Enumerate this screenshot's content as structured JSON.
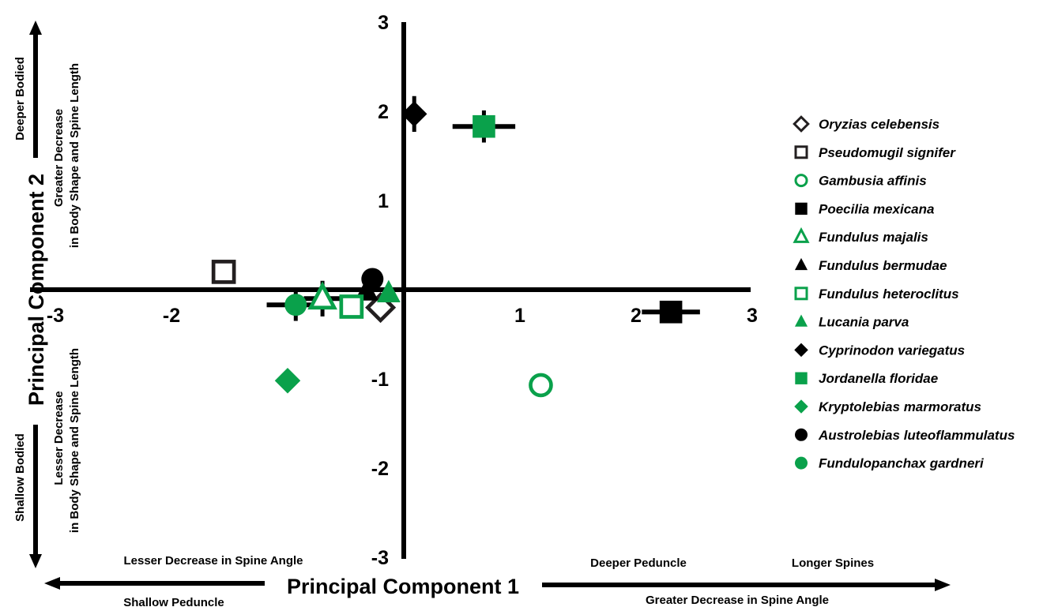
{
  "chart_data": {
    "type": "scatter",
    "xlabel": "Principal Component 1",
    "ylabel": "Principal Component 2",
    "xlim": [
      -3,
      3
    ],
    "ylim": [
      -3,
      3
    ],
    "x_ticks": [
      {
        "value": -3,
        "label": "-3"
      },
      {
        "value": -2,
        "label": "-2"
      },
      {
        "value": 1,
        "label": "1"
      },
      {
        "value": 2,
        "label": "2"
      },
      {
        "value": 3,
        "label": "3"
      }
    ],
    "y_ticks": [
      {
        "value": 3,
        "label": "3"
      },
      {
        "value": 2,
        "label": "2"
      },
      {
        "value": 1,
        "label": "1"
      },
      {
        "value": -1,
        "label": "-1"
      },
      {
        "value": -2,
        "label": "-2"
      },
      {
        "value": -3,
        "label": "-3"
      }
    ],
    "x_annotations": {
      "negative_top": "Lesser Decrease in Spine Angle",
      "negative_bottom": "Shallow Peduncle",
      "positive_top_1": "Deeper Peduncle",
      "positive_top_2": "Longer Spines",
      "positive_bottom": "Greater Decrease in Spine Angle"
    },
    "y_annotations": {
      "positive_outer": "Deeper Bodied",
      "positive_inner_1": "Greater Decrease",
      "positive_inner_2": "in Body Shape and  Spine Length",
      "negative_outer": "Shallow Bodied",
      "negative_inner_1": "Lesser Decrease",
      "negative_inner_2": "in Body Shape  and  Spine Length"
    },
    "legend_position": "right",
    "series": [
      {
        "name": "Oryzias celebensis",
        "marker": "diamond",
        "fill": "open",
        "color": "#231f20",
        "x": -0.2,
        "y": -0.2
      },
      {
        "name": "Pseudomugil signifer",
        "marker": "square",
        "fill": "open",
        "color": "#231f20",
        "x": -1.55,
        "y": 0.2
      },
      {
        "name": "Gambusia affinis",
        "marker": "circle",
        "fill": "open",
        "color": "#0aa14b",
        "x": 1.18,
        "y": -1.07
      },
      {
        "name": "Poecilia mexicana",
        "marker": "square",
        "fill": "filled",
        "color": "#000000",
        "x": 2.3,
        "y": -0.25,
        "xerr": 0.25,
        "yerr": 0.08
      },
      {
        "name": "Fundulus majalis",
        "marker": "triangle",
        "fill": "open",
        "color": "#0aa14b",
        "x": -0.7,
        "y": -0.1,
        "xerr": 0.16,
        "yerr": 0.2
      },
      {
        "name": "Fundulus bermudae",
        "marker": "triangle",
        "fill": "filled",
        "color": "#000000",
        "x": -0.32,
        "y": -0.02
      },
      {
        "name": "Fundulus heteroclitus",
        "marker": "square",
        "fill": "open",
        "color": "#0aa14b",
        "x": -0.45,
        "y": -0.19
      },
      {
        "name": "Lucania parva",
        "marker": "triangle",
        "fill": "filled",
        "color": "#0aa14b",
        "x": -0.13,
        "y": -0.04
      },
      {
        "name": "Cyprinodon variegatus",
        "marker": "diamond",
        "fill": "filled",
        "color": "#000000",
        "x": 0.09,
        "y": 1.97,
        "xerr": 0.08,
        "yerr": 0.2
      },
      {
        "name": "Jordanella floridae",
        "marker": "square",
        "fill": "filled",
        "color": "#0aa14b",
        "x": 0.69,
        "y": 1.83,
        "xerr": 0.27,
        "yerr": 0.18
      },
      {
        "name": "Kryptolebias marmoratus",
        "marker": "diamond",
        "fill": "filled",
        "color": "#0aa14b",
        "x": -1.0,
        "y": -1.02
      },
      {
        "name": "Austrolebias luteoflammulatus",
        "marker": "circle",
        "fill": "filled",
        "color": "#000000",
        "x": -0.27,
        "y": 0.12
      },
      {
        "name": "Fundulopanchax gardneri",
        "marker": "circle",
        "fill": "filled",
        "color": "#0aa14b",
        "x": -0.93,
        "y": -0.17,
        "xerr": 0.25,
        "yerr": 0.18
      }
    ]
  }
}
